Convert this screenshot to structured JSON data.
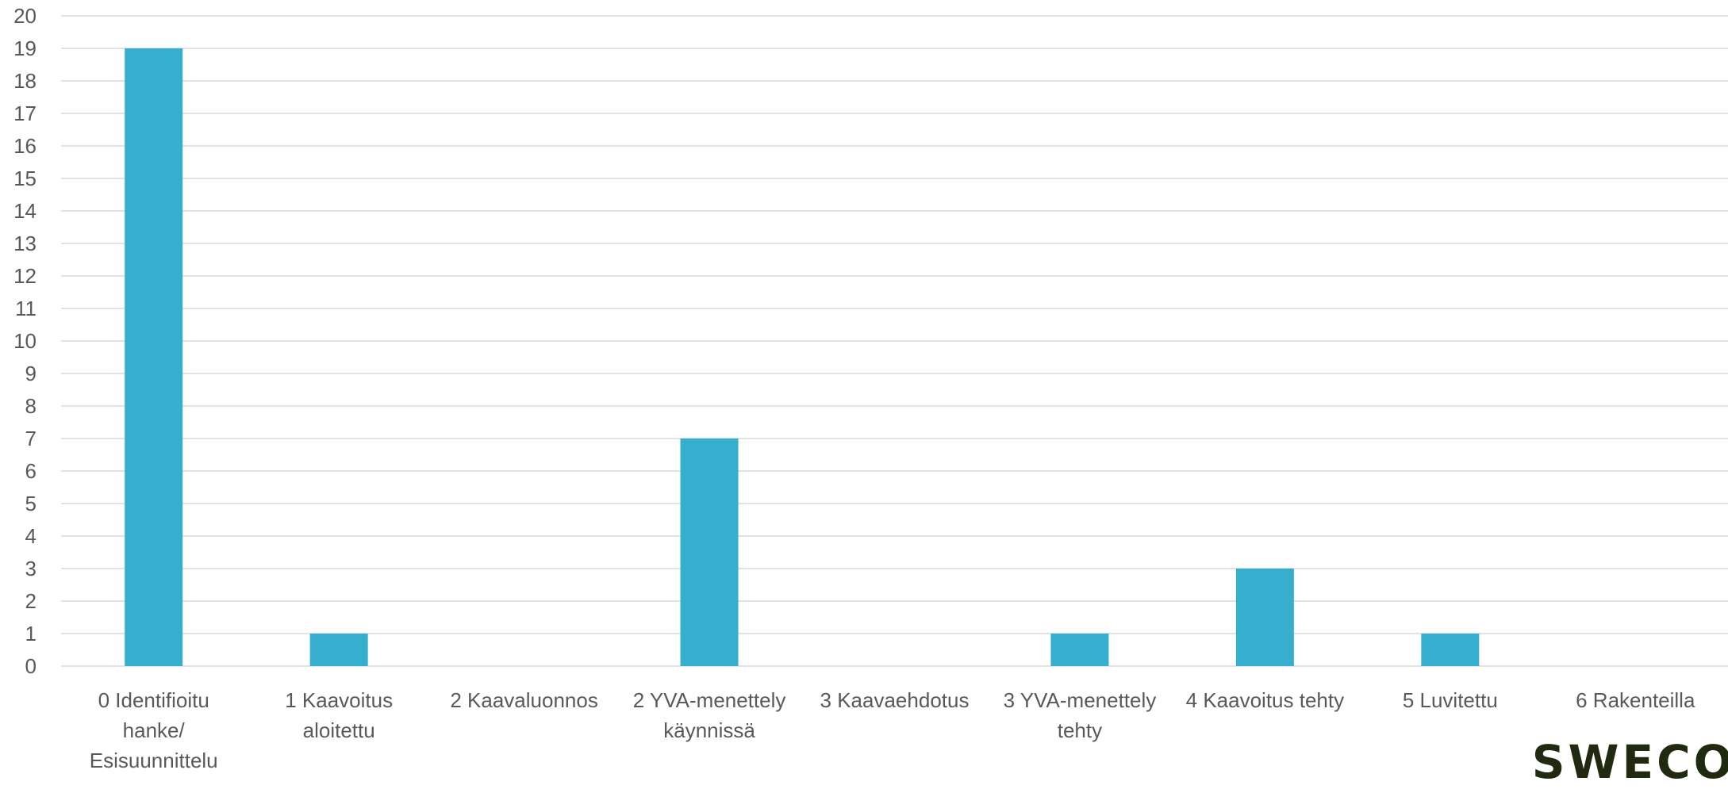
{
  "logo_text": "SWECO",
  "colors": {
    "bar": "#36AECE",
    "grid": "#D9D9D9",
    "text": "#595959"
  },
  "chart_data": {
    "type": "bar",
    "categories": [
      "0 Identifioitu hanke/ Esisuunnittelu",
      "1 Kaavoitus aloitettu",
      "2 Kaavaluonnos",
      "2 YVA-menettely käynnissä",
      "3 Kaavaehdotus",
      "3 YVA-menettely tehty",
      "4 Kaavoitus tehty",
      "5 Luvitettu",
      "6 Rakenteilla"
    ],
    "values": [
      19,
      1,
      0,
      7,
      0,
      1,
      3,
      1,
      0
    ],
    "ylim": [
      0,
      20
    ],
    "yticks": [
      0,
      1,
      2,
      3,
      4,
      5,
      6,
      7,
      8,
      9,
      10,
      11,
      12,
      13,
      14,
      15,
      16,
      17,
      18,
      19,
      20
    ],
    "grid": true,
    "legend": false,
    "title": "",
    "xlabel": "",
    "ylabel": ""
  }
}
